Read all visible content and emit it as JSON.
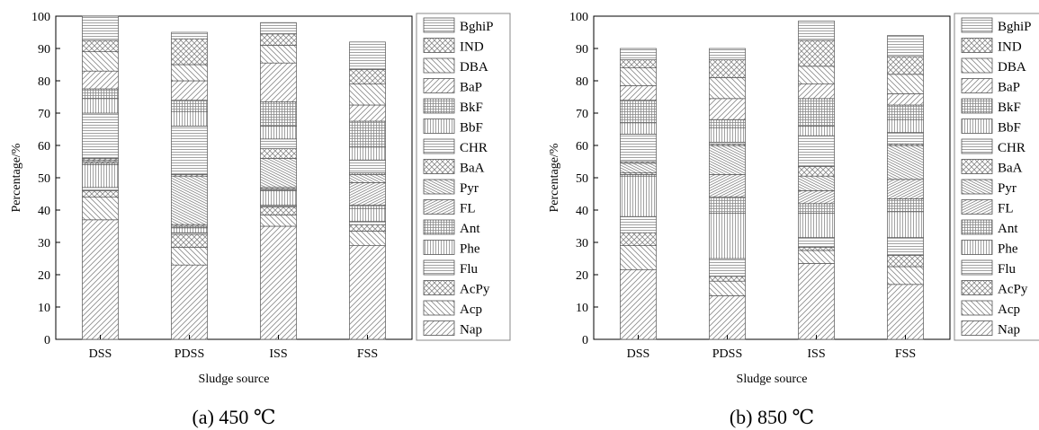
{
  "chart_data": [
    {
      "type": "bar",
      "stacked": true,
      "caption": "(a)   450 ℃",
      "xlabel": "Sludge source",
      "ylabel": "Percentage/%",
      "ylim": [
        0,
        100
      ],
      "yticks": [
        0,
        10,
        20,
        30,
        40,
        50,
        60,
        70,
        80,
        90,
        100
      ],
      "categories": [
        "DSS",
        "PDSS",
        "ISS",
        "FSS"
      ],
      "legend_position": "right",
      "series": [
        {
          "name": "Nap",
          "values": [
            37.0,
            23.0,
            35.0,
            29.0
          ]
        },
        {
          "name": "Acp",
          "values": [
            7.0,
            5.5,
            3.5,
            4.5
          ]
        },
        {
          "name": "AcPy",
          "values": [
            2.0,
            4.0,
            2.5,
            2.0
          ]
        },
        {
          "name": "Flu",
          "values": [
            1.0,
            0.5,
            0.5,
            1.0
          ]
        },
        {
          "name": "Phe",
          "values": [
            7.0,
            1.5,
            4.5,
            4.0
          ]
        },
        {
          "name": "Ant",
          "values": [
            0.5,
            0.5,
            0.5,
            1.0
          ]
        },
        {
          "name": "FL",
          "values": [
            0.5,
            0.5,
            0.5,
            7.0
          ]
        },
        {
          "name": "Pyr",
          "values": [
            0.5,
            15.0,
            9.0,
            2.5
          ]
        },
        {
          "name": "BaA",
          "values": [
            0.5,
            0.5,
            3.0,
            0.5
          ]
        },
        {
          "name": "CHR",
          "values": [
            14.0,
            15.0,
            3.0,
            4.0
          ]
        },
        {
          "name": "BbF",
          "values": [
            4.5,
            4.5,
            4.0,
            4.0
          ]
        },
        {
          "name": "BkF",
          "values": [
            3.0,
            3.5,
            7.5,
            8.0
          ]
        },
        {
          "name": "BaP",
          "values": [
            5.5,
            6.0,
            12.0,
            5.0
          ]
        },
        {
          "name": "DBA",
          "values": [
            6.0,
            5.0,
            5.5,
            6.5
          ]
        },
        {
          "name": "IND",
          "values": [
            3.5,
            8.0,
            3.5,
            4.5
          ]
        },
        {
          "name": "BghiP",
          "values": [
            7.5,
            2.0,
            3.5,
            8.5
          ]
        }
      ],
      "colors": {
        "bar_fill": "#ffffff",
        "hatch": "#8a8a8a",
        "stroke": "#555555"
      }
    },
    {
      "type": "bar",
      "stacked": true,
      "caption": "(b)   850 ℃",
      "xlabel": "Sludge source",
      "ylabel": "Percentage/%",
      "ylim": [
        0,
        100
      ],
      "yticks": [
        0,
        10,
        20,
        30,
        40,
        50,
        60,
        70,
        80,
        90,
        100
      ],
      "categories": [
        "DSS",
        "PDSS",
        "ISS",
        "FSS"
      ],
      "legend_position": "right",
      "series": [
        {
          "name": "Nap",
          "values": [
            21.5,
            13.5,
            23.5,
            17.0
          ]
        },
        {
          "name": "Acp",
          "values": [
            7.5,
            4.5,
            4.0,
            5.5
          ]
        },
        {
          "name": "AcPy",
          "values": [
            4.0,
            1.5,
            1.0,
            3.5
          ]
        },
        {
          "name": "Flu",
          "values": [
            5.0,
            5.5,
            3.0,
            5.5
          ]
        },
        {
          "name": "Phe",
          "values": [
            12.5,
            14.0,
            7.5,
            8.0
          ]
        },
        {
          "name": "Ant",
          "values": [
            0.5,
            5.0,
            3.0,
            4.0
          ]
        },
        {
          "name": "FL",
          "values": [
            0.5,
            7.0,
            4.0,
            6.0
          ]
        },
        {
          "name": "Pyr",
          "values": [
            3.0,
            9.0,
            4.5,
            10.5
          ]
        },
        {
          "name": "BaA",
          "values": [
            0.5,
            0.5,
            3.0,
            0.5
          ]
        },
        {
          "name": "CHR",
          "values": [
            8.5,
            0.5,
            9.5,
            3.5
          ]
        },
        {
          "name": "BbF",
          "values": [
            3.5,
            4.5,
            3.0,
            4.0
          ]
        },
        {
          "name": "BkF",
          "values": [
            7.0,
            2.5,
            8.5,
            4.5
          ]
        },
        {
          "name": "BaP",
          "values": [
            4.5,
            6.5,
            4.5,
            3.5
          ]
        },
        {
          "name": "DBA",
          "values": [
            5.5,
            6.5,
            5.5,
            6.0
          ]
        },
        {
          "name": "IND",
          "values": [
            2.5,
            5.5,
            8.0,
            5.5
          ]
        },
        {
          "name": "BghiP",
          "values": [
            3.5,
            3.5,
            6.0,
            6.5
          ]
        }
      ],
      "colors": {
        "bar_fill": "#ffffff",
        "hatch": "#8a8a8a",
        "stroke": "#555555"
      }
    }
  ]
}
